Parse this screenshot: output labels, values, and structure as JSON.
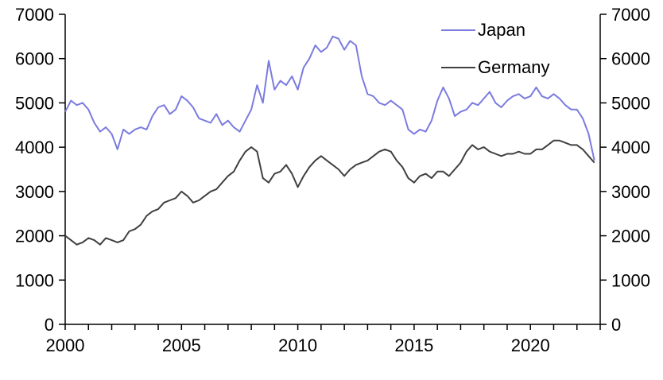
{
  "chart_data": {
    "type": "line",
    "title": "",
    "xlabel": "",
    "ylabel": "",
    "xlim": [
      2000,
      2023
    ],
    "ylim": [
      0,
      7000
    ],
    "x_ticks": [
      2000,
      2005,
      2010,
      2015,
      2020
    ],
    "x_tick_labels": [
      "2000",
      "2005",
      "2010",
      "2015",
      "2020"
    ],
    "y_ticks": [
      0,
      1000,
      2000,
      3000,
      4000,
      5000,
      6000,
      7000
    ],
    "y_tick_labels": [
      "0",
      "1000",
      "2000",
      "3000",
      "4000",
      "5000",
      "6000",
      "7000"
    ],
    "y_right_tick_labels": [
      "0",
      "1000",
      "2000",
      "3000",
      "4000",
      "5000",
      "6000",
      "7000"
    ],
    "grid": false,
    "legend_position": "top-right",
    "series": [
      {
        "name": "Japan",
        "color": "#7b7be0",
        "x": [
          2000.0,
          2000.25,
          2000.5,
          2000.75,
          2001.0,
          2001.25,
          2001.5,
          2001.75,
          2002.0,
          2002.25,
          2002.5,
          2002.75,
          2003.0,
          2003.25,
          2003.5,
          2003.75,
          2004.0,
          2004.25,
          2004.5,
          2004.75,
          2005.0,
          2005.25,
          2005.5,
          2005.75,
          2006.0,
          2006.25,
          2006.5,
          2006.75,
          2007.0,
          2007.25,
          2007.5,
          2007.75,
          2008.0,
          2008.25,
          2008.5,
          2008.75,
          2009.0,
          2009.25,
          2009.5,
          2009.75,
          2010.0,
          2010.25,
          2010.5,
          2010.75,
          2011.0,
          2011.25,
          2011.5,
          2011.75,
          2012.0,
          2012.25,
          2012.5,
          2012.75,
          2013.0,
          2013.25,
          2013.5,
          2013.75,
          2014.0,
          2014.25,
          2014.5,
          2014.75,
          2015.0,
          2015.25,
          2015.5,
          2015.75,
          2016.0,
          2016.25,
          2016.5,
          2016.75,
          2017.0,
          2017.25,
          2017.5,
          2017.75,
          2018.0,
          2018.25,
          2018.5,
          2018.75,
          2019.0,
          2019.25,
          2019.5,
          2019.75,
          2020.0,
          2020.25,
          2020.5,
          2020.75,
          2021.0,
          2021.25,
          2021.5,
          2021.75,
          2022.0,
          2022.25,
          2022.5,
          2022.75
        ],
        "values": [
          4800,
          5050,
          4950,
          5000,
          4850,
          4550,
          4350,
          4450,
          4300,
          3950,
          4400,
          4300,
          4400,
          4450,
          4400,
          4700,
          4900,
          4950,
          4750,
          4850,
          5150,
          5050,
          4900,
          4650,
          4600,
          4550,
          4750,
          4500,
          4600,
          4450,
          4350,
          4600,
          4850,
          5400,
          5000,
          5950,
          5300,
          5500,
          5400,
          5600,
          5300,
          5800,
          6000,
          6300,
          6150,
          6250,
          6500,
          6450,
          6200,
          6400,
          6300,
          5600,
          5200,
          5150,
          5000,
          4950,
          5050,
          4950,
          4850,
          4400,
          4300,
          4400,
          4350,
          4600,
          5050,
          5350,
          5100,
          4700,
          4800,
          4850,
          5000,
          4950,
          5100,
          5250,
          5000,
          4900,
          5050,
          5150,
          5200,
          5100,
          5150,
          5350,
          5150,
          5100,
          5200,
          5100,
          4950,
          4850,
          4850,
          4650,
          4300,
          3700
        ]
      },
      {
        "name": "Germany",
        "color": "#404040",
        "x": [
          2000.0,
          2000.25,
          2000.5,
          2000.75,
          2001.0,
          2001.25,
          2001.5,
          2001.75,
          2002.0,
          2002.25,
          2002.5,
          2002.75,
          2003.0,
          2003.25,
          2003.5,
          2003.75,
          2004.0,
          2004.25,
          2004.5,
          2004.75,
          2005.0,
          2005.25,
          2005.5,
          2005.75,
          2006.0,
          2006.25,
          2006.5,
          2006.75,
          2007.0,
          2007.25,
          2007.5,
          2007.75,
          2008.0,
          2008.25,
          2008.5,
          2008.75,
          2009.0,
          2009.25,
          2009.5,
          2009.75,
          2010.0,
          2010.25,
          2010.5,
          2010.75,
          2011.0,
          2011.25,
          2011.5,
          2011.75,
          2012.0,
          2012.25,
          2012.5,
          2012.75,
          2013.0,
          2013.25,
          2013.5,
          2013.75,
          2014.0,
          2014.25,
          2014.5,
          2014.75,
          2015.0,
          2015.25,
          2015.5,
          2015.75,
          2016.0,
          2016.25,
          2016.5,
          2016.75,
          2017.0,
          2017.25,
          2017.5,
          2017.75,
          2018.0,
          2018.25,
          2018.5,
          2018.75,
          2019.0,
          2019.25,
          2019.5,
          2019.75,
          2020.0,
          2020.25,
          2020.5,
          2020.75,
          2021.0,
          2021.25,
          2021.5,
          2021.75,
          2022.0,
          2022.25,
          2022.5,
          2022.75
        ],
        "values": [
          2000,
          1900,
          1800,
          1850,
          1950,
          1900,
          1800,
          1950,
          1900,
          1850,
          1900,
          2100,
          2150,
          2250,
          2450,
          2550,
          2600,
          2750,
          2800,
          2850,
          3000,
          2900,
          2750,
          2800,
          2900,
          3000,
          3050,
          3200,
          3350,
          3450,
          3700,
          3900,
          4000,
          3900,
          3300,
          3200,
          3400,
          3450,
          3600,
          3400,
          3100,
          3350,
          3550,
          3700,
          3800,
          3700,
          3600,
          3500,
          3350,
          3500,
          3600,
          3650,
          3700,
          3800,
          3900,
          3950,
          3900,
          3700,
          3550,
          3300,
          3200,
          3350,
          3400,
          3300,
          3450,
          3450,
          3350,
          3500,
          3650,
          3900,
          4050,
          3950,
          4000,
          3900,
          3850,
          3800,
          3850,
          3850,
          3900,
          3850,
          3850,
          3950,
          3950,
          4050,
          4150,
          4150,
          4100,
          4050,
          4050,
          3950,
          3800,
          3650
        ]
      }
    ]
  }
}
